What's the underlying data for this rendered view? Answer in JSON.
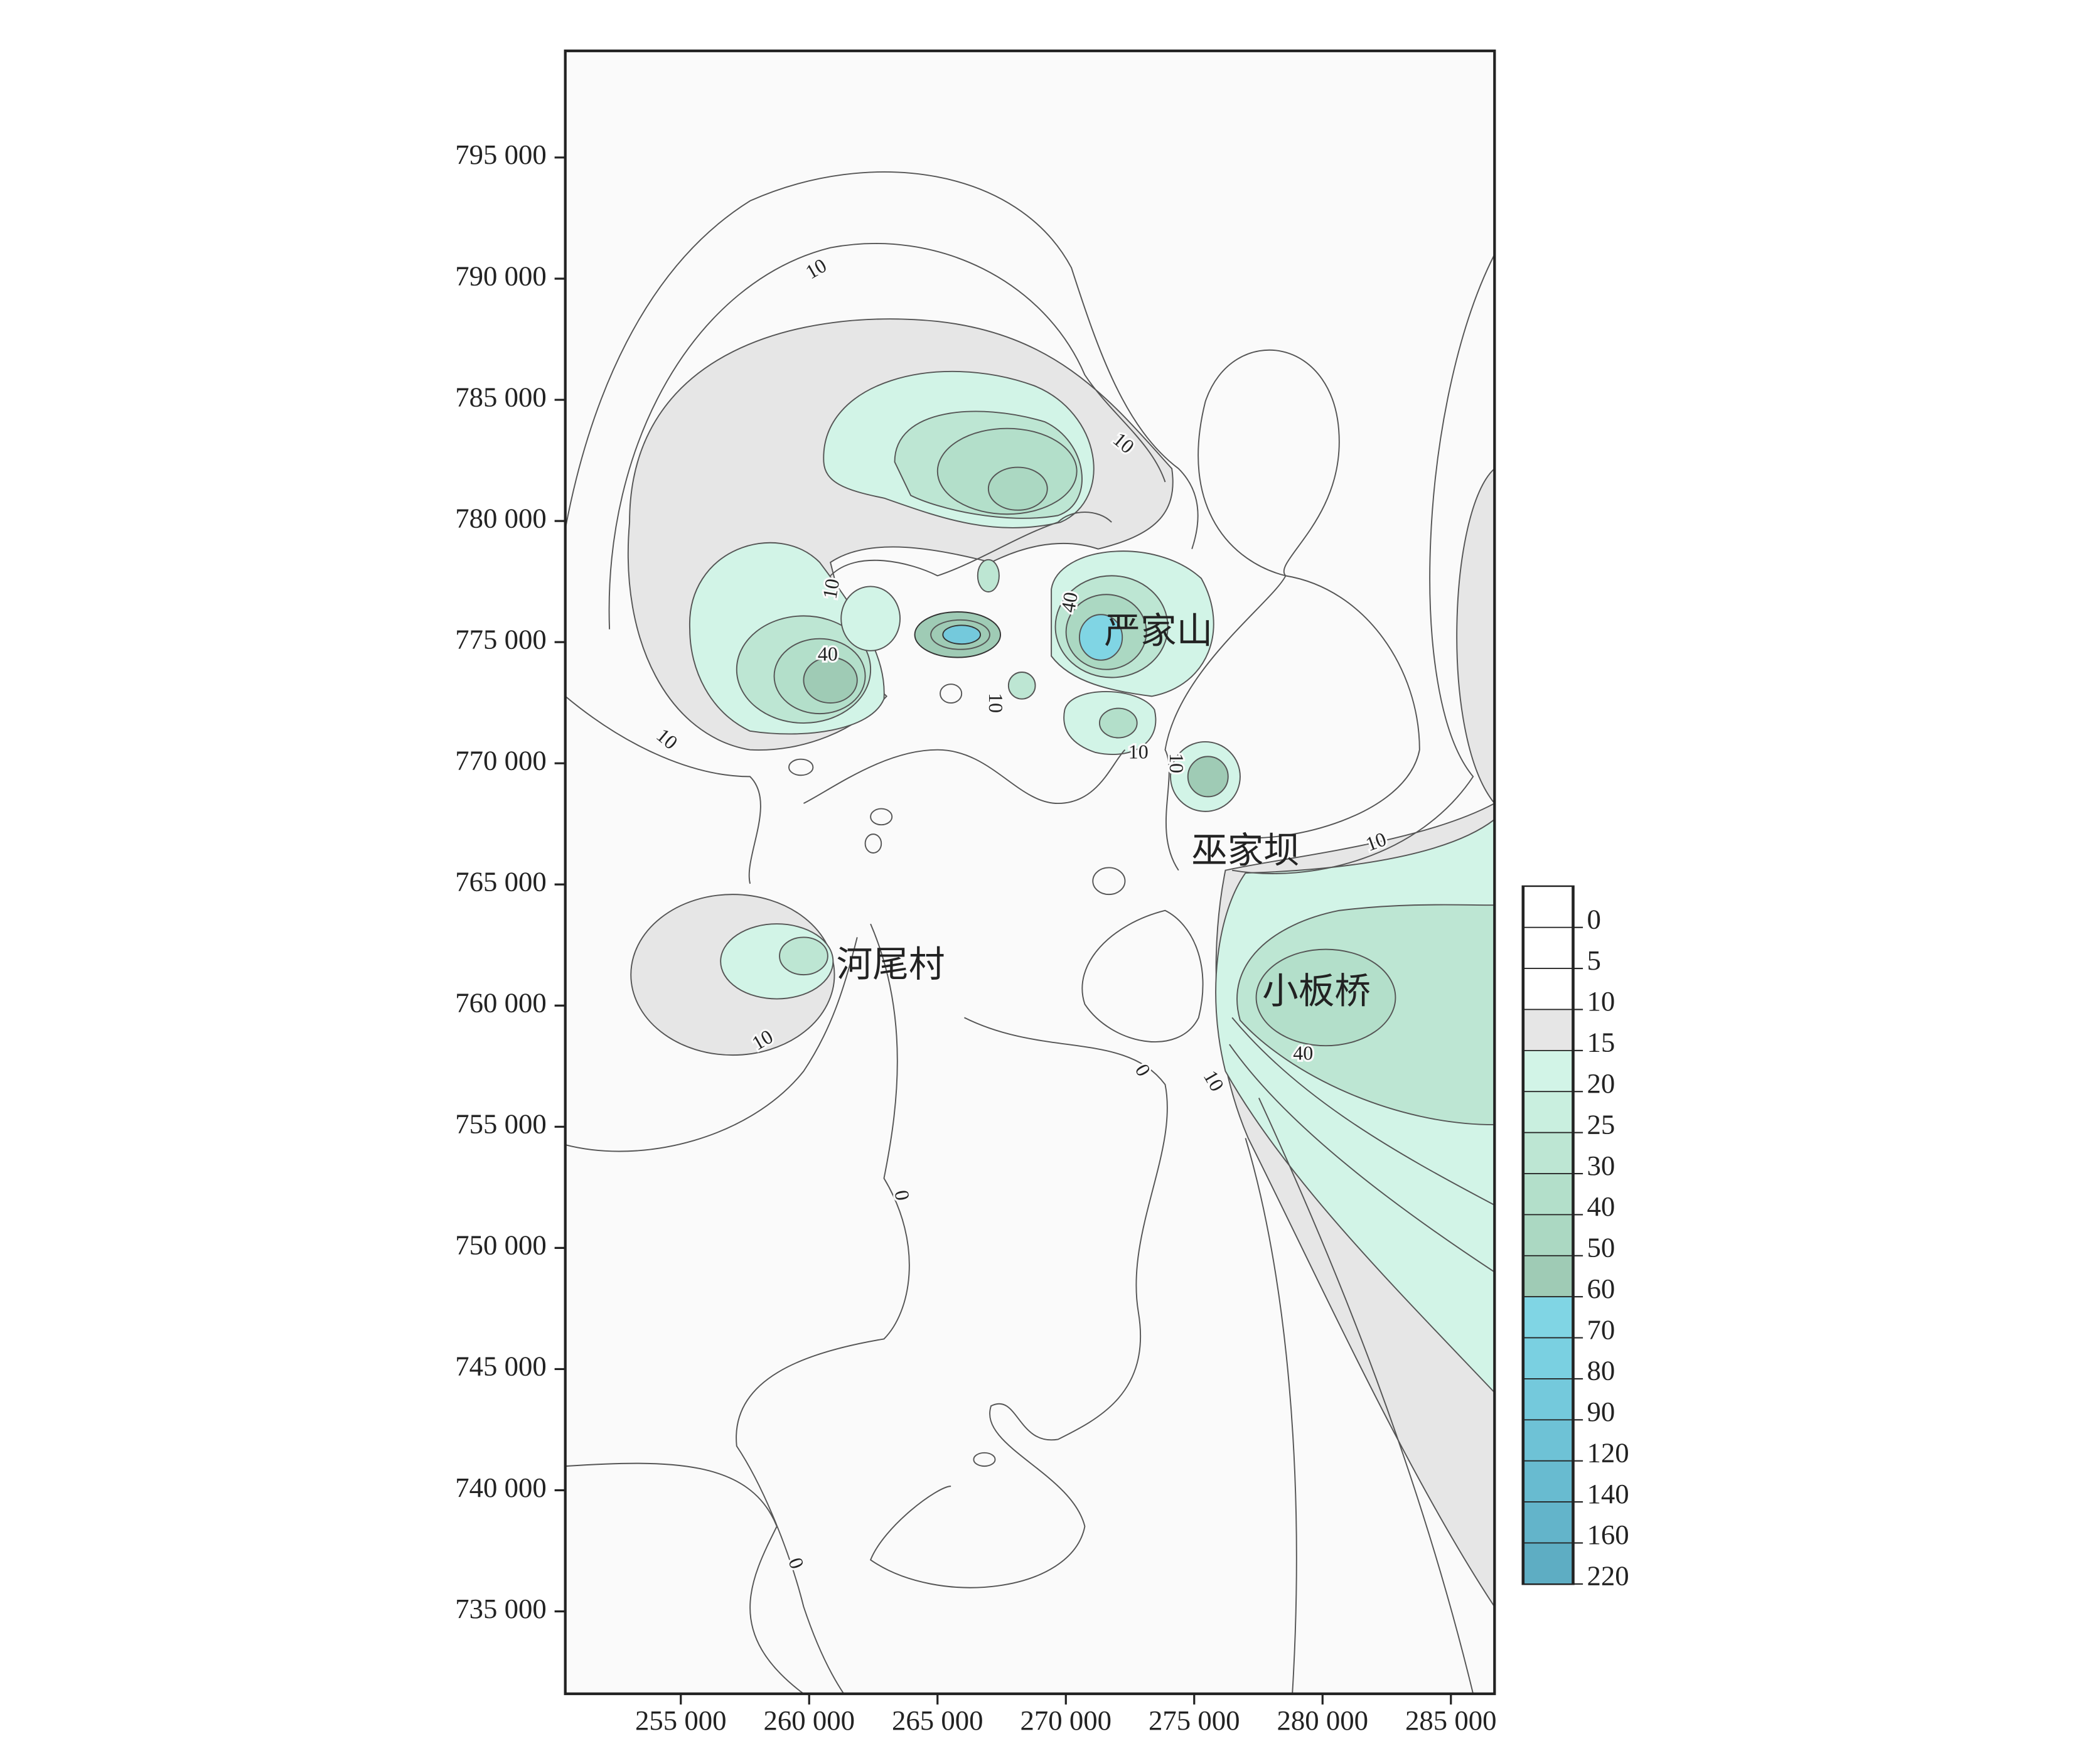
{
  "map": {
    "xlim": [
      250500,
      286700
    ],
    "ylim": [
      731600,
      799400
    ],
    "xticks": [
      {
        "value": 255000,
        "label": "255 000"
      },
      {
        "value": 260000,
        "label": "260 000"
      },
      {
        "value": 265000,
        "label": "265 000"
      },
      {
        "value": 270000,
        "label": "270 000"
      },
      {
        "value": 275000,
        "label": "275 000"
      },
      {
        "value": 280000,
        "label": "280 000"
      },
      {
        "value": 285000,
        "label": "285 000"
      }
    ],
    "yticks": [
      {
        "value": 795000,
        "label": "795 000"
      },
      {
        "value": 790000,
        "label": "790 000"
      },
      {
        "value": 785000,
        "label": "785 000"
      },
      {
        "value": 780000,
        "label": "780 000"
      },
      {
        "value": 775000,
        "label": "775 000"
      },
      {
        "value": 770000,
        "label": "770 000"
      },
      {
        "value": 765000,
        "label": "765 000"
      },
      {
        "value": 760000,
        "label": "760 000"
      },
      {
        "value": 755000,
        "label": "755 000"
      },
      {
        "value": 750000,
        "label": "750 000"
      },
      {
        "value": 745000,
        "label": "745 000"
      },
      {
        "value": 740000,
        "label": "740 000"
      },
      {
        "value": 735000,
        "label": "735 000"
      }
    ],
    "places": [
      "严家山",
      "巫家坝",
      "河尾村",
      "小板桥"
    ],
    "contour_labels": [
      10,
      10,
      10,
      40,
      10,
      40,
      10,
      10,
      10,
      10,
      10,
      40,
      10,
      0,
      0,
      0
    ],
    "legend": {
      "levels": [
        0,
        5,
        10,
        15,
        20,
        25,
        30,
        40,
        50,
        60,
        70,
        80,
        90,
        120,
        140,
        160,
        220
      ],
      "colors": [
        "#ffffff",
        "#ffffff",
        "#ffffff",
        "#e6e6e6",
        "#d2f4e7",
        "#c9efdf",
        "#bde6d3",
        "#b3dfca",
        "#abd8c2",
        "#9fcbb5",
        "#80d5e4",
        "#7ad0e1",
        "#74c9dc",
        "#6ec2d6",
        "#68bbd0",
        "#63b4ca",
        "#5eadc3"
      ]
    }
  }
}
